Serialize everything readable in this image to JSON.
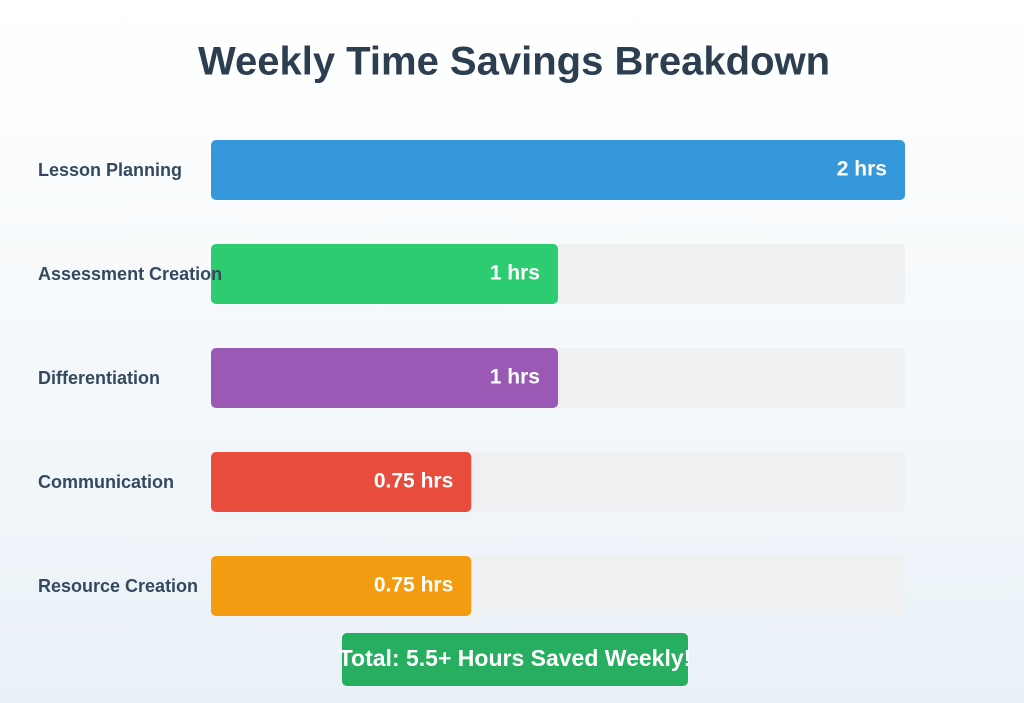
{
  "chart_data": {
    "type": "bar",
    "orientation": "horizontal",
    "title": "Weekly Time Savings Breakdown",
    "categories": [
      "Lesson Planning",
      "Assessment Creation",
      "Differentiation",
      "Communication",
      "Resource Creation"
    ],
    "values": [
      2,
      1,
      1,
      0.75,
      0.75
    ],
    "value_labels": [
      "2 hrs",
      "1 hrs",
      "1 hrs",
      "0.75 hrs",
      "0.75 hrs"
    ],
    "colors": [
      "#3498db",
      "#2ecc71",
      "#9b59b6",
      "#e74c3c",
      "#f39c12"
    ],
    "xlim": [
      0,
      2
    ],
    "annotation": "Total: 5.5+ Hours Saved Weekly!"
  }
}
